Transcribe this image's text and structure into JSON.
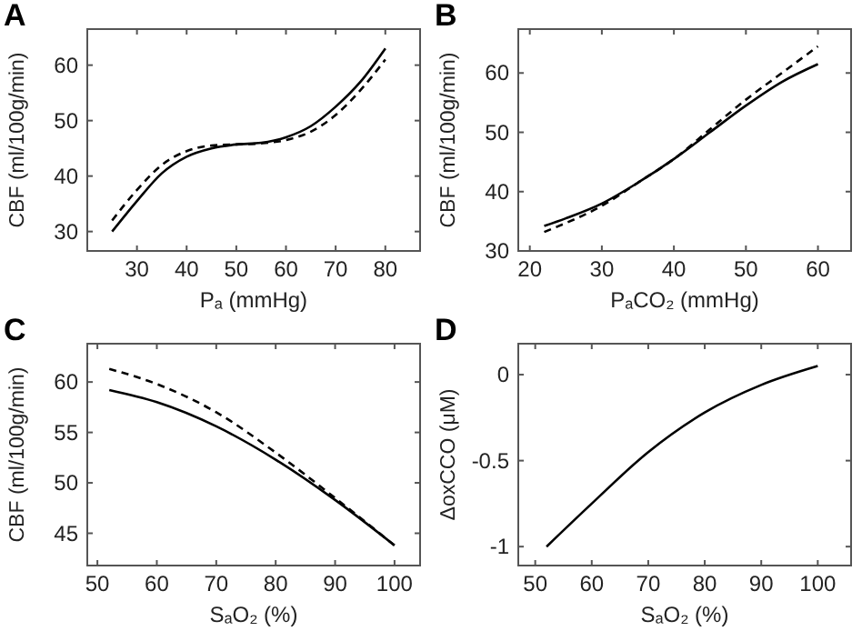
{
  "chart_data": [
    {
      "type": "line",
      "title": "A",
      "xlabel": "Pₐ (mmHg)",
      "ylabel": "CBF (ml/100g/min)",
      "xlim": [
        20,
        87
      ],
      "xticks": [
        30,
        40,
        50,
        60,
        70,
        80
      ],
      "ylim": [
        26.5,
        66.5
      ],
      "yticks": [
        30,
        40,
        50,
        60
      ],
      "series": [
        {
          "color": "#000000",
          "line_style": "solid",
          "x": [
            25,
            30,
            35,
            40,
            45,
            50,
            55,
            60,
            65,
            70,
            75,
            80
          ],
          "values": [
            30,
            35.5,
            40.5,
            43.5,
            45,
            45.7,
            46,
            47,
            49,
            52.5,
            57,
            63
          ]
        },
        {
          "color": "#000000",
          "line_style": "dashed",
          "x": [
            25,
            30,
            35,
            40,
            45,
            50,
            55,
            60,
            65,
            70,
            75,
            80
          ],
          "values": [
            32,
            37.5,
            42,
            44.5,
            45.5,
            45.7,
            45.9,
            46.5,
            48,
            51,
            55.5,
            61
          ]
        }
      ]
    },
    {
      "type": "line",
      "title": "B",
      "xlabel": "PₐCO₂ (mmHg)",
      "ylabel": "CBF (ml/100g/min)",
      "xlim": [
        18.4,
        64.6
      ],
      "xticks": [
        20,
        30,
        40,
        50,
        60
      ],
      "ylim": [
        30,
        67.4
      ],
      "yticks": [
        30,
        40,
        50,
        60
      ],
      "series": [
        {
          "color": "#000000",
          "line_style": "solid",
          "x": [
            22,
            25,
            30,
            35,
            40,
            45,
            50,
            55,
            60
          ],
          "values": [
            34.2,
            35.5,
            38,
            41.5,
            45.5,
            50,
            54.5,
            58.5,
            61.5
          ]
        },
        {
          "color": "#000000",
          "line_style": "dashed",
          "x": [
            22,
            25,
            30,
            35,
            40,
            45,
            50,
            55,
            60
          ],
          "values": [
            33.2,
            34.7,
            37.6,
            41.5,
            45.5,
            50.5,
            55.5,
            60,
            64.5
          ]
        }
      ]
    },
    {
      "type": "line",
      "title": "C",
      "xlabel": "SₐO₂ (%)",
      "ylabel": "CBF (ml/100g/min)",
      "xlim": [
        48.3,
        104.3
      ],
      "xticks": [
        50,
        60,
        70,
        80,
        90,
        100
      ],
      "ylim": [
        41.8,
        63.8
      ],
      "yticks": [
        45,
        50,
        55,
        60
      ],
      "series": [
        {
          "color": "#000000",
          "line_style": "solid",
          "x": [
            52,
            60,
            70,
            80,
            90,
            100
          ],
          "values": [
            59.2,
            58,
            55.6,
            52.3,
            48.3,
            43.8
          ]
        },
        {
          "color": "#000000",
          "line_style": "dashed",
          "x": [
            52,
            60,
            70,
            80,
            90,
            100
          ],
          "values": [
            61.3,
            59.8,
            57,
            53,
            48.5,
            43.8
          ]
        }
      ]
    },
    {
      "type": "line",
      "title": "D",
      "xlabel": "SₐO₂ (%)",
      "ylabel": "ΔoxCCO (μM)",
      "xlim": [
        47,
        105.9
      ],
      "xticks": [
        50,
        60,
        70,
        80,
        90,
        100
      ],
      "ylim": [
        -1.11,
        0.18
      ],
      "yticks": [
        -1,
        -0.5,
        0
      ],
      "series": [
        {
          "color": "#000000",
          "line_style": "solid",
          "x": [
            52,
            60,
            70,
            80,
            90,
            100
          ],
          "values": [
            -1,
            -0.75,
            -0.45,
            -0.22,
            -0.06,
            0.05
          ]
        }
      ]
    }
  ]
}
